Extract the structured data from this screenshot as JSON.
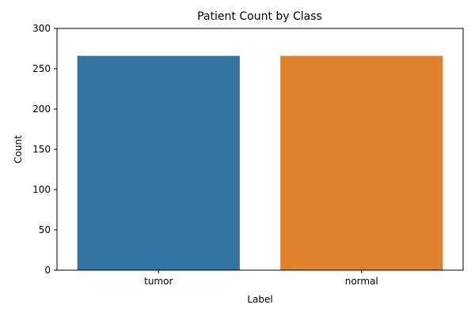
{
  "chart_data": {
    "type": "bar",
    "title": "Patient Count by Class",
    "xlabel": "Label",
    "ylabel": "Count",
    "categories": [
      "tumor",
      "normal"
    ],
    "values": [
      266,
      266
    ],
    "colors": [
      "#3274a1",
      "#e1812c"
    ],
    "ylim": [
      0,
      300
    ],
    "yticks": [
      0,
      50,
      100,
      150,
      200,
      250,
      300
    ],
    "grid": false,
    "legend": "none"
  }
}
